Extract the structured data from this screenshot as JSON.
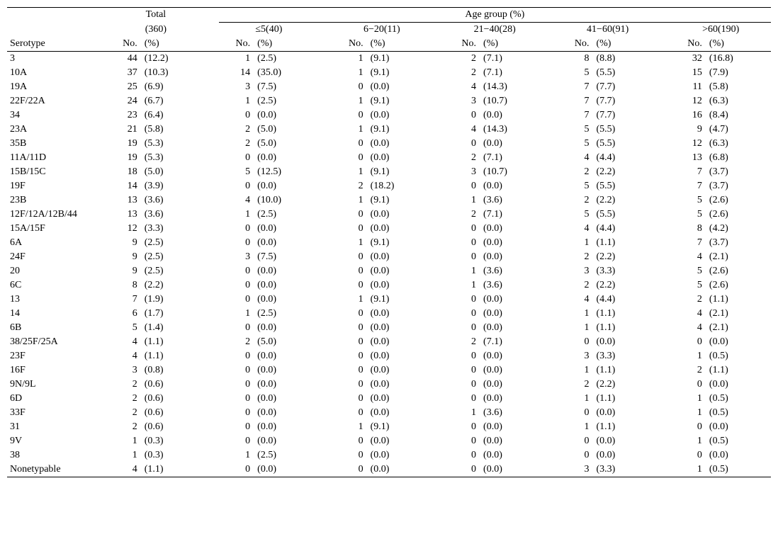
{
  "headers": {
    "serotype": "Serotype",
    "total_label": "Total",
    "total_n": "(360)",
    "age_group_label": "Age group (%)",
    "no_label": "No.",
    "pct_label": "(%)",
    "groups": [
      {
        "label": "≤5(40)"
      },
      {
        "label": "6−20(11)"
      },
      {
        "label": "21−40(28)"
      },
      {
        "label": "41−60(91)"
      },
      {
        "label": ">60(190)"
      }
    ]
  },
  "rows": [
    {
      "s": "3",
      "t_no": "44",
      "t_pct": "(12.2)",
      "g": [
        [
          "1",
          "(2.5)"
        ],
        [
          "1",
          "(9.1)"
        ],
        [
          "2",
          "(7.1)"
        ],
        [
          "8",
          "(8.8)"
        ],
        [
          "32",
          "(16.8)"
        ]
      ]
    },
    {
      "s": "10A",
      "t_no": "37",
      "t_pct": "(10.3)",
      "g": [
        [
          "14",
          "(35.0)"
        ],
        [
          "1",
          "(9.1)"
        ],
        [
          "2",
          "(7.1)"
        ],
        [
          "5",
          "(5.5)"
        ],
        [
          "15",
          "(7.9)"
        ]
      ]
    },
    {
      "s": "19A",
      "t_no": "25",
      "t_pct": "(6.9)",
      "g": [
        [
          "3",
          "(7.5)"
        ],
        [
          "0",
          "(0.0)"
        ],
        [
          "4",
          "(14.3)"
        ],
        [
          "7",
          "(7.7)"
        ],
        [
          "11",
          "(5.8)"
        ]
      ]
    },
    {
      "s": "22F/22A",
      "t_no": "24",
      "t_pct": "(6.7)",
      "g": [
        [
          "1",
          "(2.5)"
        ],
        [
          "1",
          "(9.1)"
        ],
        [
          "3",
          "(10.7)"
        ],
        [
          "7",
          "(7.7)"
        ],
        [
          "12",
          "(6.3)"
        ]
      ]
    },
    {
      "s": "34",
      "t_no": "23",
      "t_pct": "(6.4)",
      "g": [
        [
          "0",
          "(0.0)"
        ],
        [
          "0",
          "(0.0)"
        ],
        [
          "0",
          "(0.0)"
        ],
        [
          "7",
          "(7.7)"
        ],
        [
          "16",
          "(8.4)"
        ]
      ]
    },
    {
      "s": "23A",
      "t_no": "21",
      "t_pct": "(5.8)",
      "g": [
        [
          "2",
          "(5.0)"
        ],
        [
          "1",
          "(9.1)"
        ],
        [
          "4",
          "(14.3)"
        ],
        [
          "5",
          "(5.5)"
        ],
        [
          "9",
          "(4.7)"
        ]
      ]
    },
    {
      "s": "35B",
      "t_no": "19",
      "t_pct": "(5.3)",
      "g": [
        [
          "2",
          "(5.0)"
        ],
        [
          "0",
          "(0.0)"
        ],
        [
          "0",
          "(0.0)"
        ],
        [
          "5",
          "(5.5)"
        ],
        [
          "12",
          "(6.3)"
        ]
      ]
    },
    {
      "s": "11A/11D",
      "t_no": "19",
      "t_pct": "(5.3)",
      "g": [
        [
          "0",
          "(0.0)"
        ],
        [
          "0",
          "(0.0)"
        ],
        [
          "2",
          "(7.1)"
        ],
        [
          "4",
          "(4.4)"
        ],
        [
          "13",
          "(6.8)"
        ]
      ]
    },
    {
      "s": "15B/15C",
      "t_no": "18",
      "t_pct": "(5.0)",
      "g": [
        [
          "5",
          "(12.5)"
        ],
        [
          "1",
          "(9.1)"
        ],
        [
          "3",
          "(10.7)"
        ],
        [
          "2",
          "(2.2)"
        ],
        [
          "7",
          "(3.7)"
        ]
      ]
    },
    {
      "s": "19F",
      "t_no": "14",
      "t_pct": "(3.9)",
      "g": [
        [
          "0",
          "(0.0)"
        ],
        [
          "2",
          "(18.2)"
        ],
        [
          "0",
          "(0.0)"
        ],
        [
          "5",
          "(5.5)"
        ],
        [
          "7",
          "(3.7)"
        ]
      ]
    },
    {
      "s": "23B",
      "t_no": "13",
      "t_pct": "(3.6)",
      "g": [
        [
          "4",
          "(10.0)"
        ],
        [
          "1",
          "(9.1)"
        ],
        [
          "1",
          "(3.6)"
        ],
        [
          "2",
          "(2.2)"
        ],
        [
          "5",
          "(2.6)"
        ]
      ]
    },
    {
      "s": "12F/12A/12B/44",
      "t_no": "13",
      "t_pct": "(3.6)",
      "g": [
        [
          "1",
          "(2.5)"
        ],
        [
          "0",
          "(0.0)"
        ],
        [
          "2",
          "(7.1)"
        ],
        [
          "5",
          "(5.5)"
        ],
        [
          "5",
          "(2.6)"
        ]
      ]
    },
    {
      "s": "15A/15F",
      "t_no": "12",
      "t_pct": "(3.3)",
      "g": [
        [
          "0",
          "(0.0)"
        ],
        [
          "0",
          "(0.0)"
        ],
        [
          "0",
          "(0.0)"
        ],
        [
          "4",
          "(4.4)"
        ],
        [
          "8",
          "(4.2)"
        ]
      ]
    },
    {
      "s": "6A",
      "t_no": "9",
      "t_pct": "(2.5)",
      "g": [
        [
          "0",
          "(0.0)"
        ],
        [
          "1",
          "(9.1)"
        ],
        [
          "0",
          "(0.0)"
        ],
        [
          "1",
          "(1.1)"
        ],
        [
          "7",
          "(3.7)"
        ]
      ]
    },
    {
      "s": "24F",
      "t_no": "9",
      "t_pct": "(2.5)",
      "g": [
        [
          "3",
          "(7.5)"
        ],
        [
          "0",
          "(0.0)"
        ],
        [
          "0",
          "(0.0)"
        ],
        [
          "2",
          "(2.2)"
        ],
        [
          "4",
          "(2.1)"
        ]
      ]
    },
    {
      "s": "20",
      "t_no": "9",
      "t_pct": "(2.5)",
      "g": [
        [
          "0",
          "(0.0)"
        ],
        [
          "0",
          "(0.0)"
        ],
        [
          "1",
          "(3.6)"
        ],
        [
          "3",
          "(3.3)"
        ],
        [
          "5",
          "(2.6)"
        ]
      ]
    },
    {
      "s": "6C",
      "t_no": "8",
      "t_pct": "(2.2)",
      "g": [
        [
          "0",
          "(0.0)"
        ],
        [
          "0",
          "(0.0)"
        ],
        [
          "1",
          "(3.6)"
        ],
        [
          "2",
          "(2.2)"
        ],
        [
          "5",
          "(2.6)"
        ]
      ]
    },
    {
      "s": "13",
      "t_no": "7",
      "t_pct": "(1.9)",
      "g": [
        [
          "0",
          "(0.0)"
        ],
        [
          "1",
          "(9.1)"
        ],
        [
          "0",
          "(0.0)"
        ],
        [
          "4",
          "(4.4)"
        ],
        [
          "2",
          "(1.1)"
        ]
      ]
    },
    {
      "s": "14",
      "t_no": "6",
      "t_pct": "(1.7)",
      "g": [
        [
          "1",
          "(2.5)"
        ],
        [
          "0",
          "(0.0)"
        ],
        [
          "0",
          "(0.0)"
        ],
        [
          "1",
          "(1.1)"
        ],
        [
          "4",
          "(2.1)"
        ]
      ]
    },
    {
      "s": "6B",
      "t_no": "5",
      "t_pct": "(1.4)",
      "g": [
        [
          "0",
          "(0.0)"
        ],
        [
          "0",
          "(0.0)"
        ],
        [
          "0",
          "(0.0)"
        ],
        [
          "1",
          "(1.1)"
        ],
        [
          "4",
          "(2.1)"
        ]
      ]
    },
    {
      "s": "38/25F/25A",
      "t_no": "4",
      "t_pct": "(1.1)",
      "g": [
        [
          "2",
          "(5.0)"
        ],
        [
          "0",
          "(0.0)"
        ],
        [
          "2",
          "(7.1)"
        ],
        [
          "0",
          "(0.0)"
        ],
        [
          "0",
          "(0.0)"
        ]
      ]
    },
    {
      "s": "23F",
      "t_no": "4",
      "t_pct": "(1.1)",
      "g": [
        [
          "0",
          "(0.0)"
        ],
        [
          "0",
          "(0.0)"
        ],
        [
          "0",
          "(0.0)"
        ],
        [
          "3",
          "(3.3)"
        ],
        [
          "1",
          "(0.5)"
        ]
      ]
    },
    {
      "s": "16F",
      "t_no": "3",
      "t_pct": "(0.8)",
      "g": [
        [
          "0",
          "(0.0)"
        ],
        [
          "0",
          "(0.0)"
        ],
        [
          "0",
          "(0.0)"
        ],
        [
          "1",
          "(1.1)"
        ],
        [
          "2",
          "(1.1)"
        ]
      ]
    },
    {
      "s": "9N/9L",
      "t_no": "2",
      "t_pct": "(0.6)",
      "g": [
        [
          "0",
          "(0.0)"
        ],
        [
          "0",
          "(0.0)"
        ],
        [
          "0",
          "(0.0)"
        ],
        [
          "2",
          "(2.2)"
        ],
        [
          "0",
          "(0.0)"
        ]
      ]
    },
    {
      "s": "6D",
      "t_no": "2",
      "t_pct": "(0.6)",
      "g": [
        [
          "0",
          "(0.0)"
        ],
        [
          "0",
          "(0.0)"
        ],
        [
          "0",
          "(0.0)"
        ],
        [
          "1",
          "(1.1)"
        ],
        [
          "1",
          "(0.5)"
        ]
      ]
    },
    {
      "s": "33F",
      "t_no": "2",
      "t_pct": "(0.6)",
      "g": [
        [
          "0",
          "(0.0)"
        ],
        [
          "0",
          "(0.0)"
        ],
        [
          "1",
          "(3.6)"
        ],
        [
          "0",
          "(0.0)"
        ],
        [
          "1",
          "(0.5)"
        ]
      ]
    },
    {
      "s": "31",
      "t_no": "2",
      "t_pct": "(0.6)",
      "g": [
        [
          "0",
          "(0.0)"
        ],
        [
          "1",
          "(9.1)"
        ],
        [
          "0",
          "(0.0)"
        ],
        [
          "1",
          "(1.1)"
        ],
        [
          "0",
          "(0.0)"
        ]
      ]
    },
    {
      "s": "9V",
      "t_no": "1",
      "t_pct": "(0.3)",
      "g": [
        [
          "0",
          "(0.0)"
        ],
        [
          "0",
          "(0.0)"
        ],
        [
          "0",
          "(0.0)"
        ],
        [
          "0",
          "(0.0)"
        ],
        [
          "1",
          "(0.5)"
        ]
      ]
    },
    {
      "s": "38",
      "t_no": "1",
      "t_pct": "(0.3)",
      "g": [
        [
          "1",
          "(2.5)"
        ],
        [
          "0",
          "(0.0)"
        ],
        [
          "0",
          "(0.0)"
        ],
        [
          "0",
          "(0.0)"
        ],
        [
          "0",
          "(0.0)"
        ]
      ]
    },
    {
      "s": "Nonetypable",
      "t_no": "4",
      "t_pct": "(1.1)",
      "g": [
        [
          "0",
          "(0.0)"
        ],
        [
          "0",
          "(0.0)"
        ],
        [
          "0",
          "(0.0)"
        ],
        [
          "3",
          "(3.3)"
        ],
        [
          "1",
          "(0.5)"
        ]
      ]
    }
  ]
}
